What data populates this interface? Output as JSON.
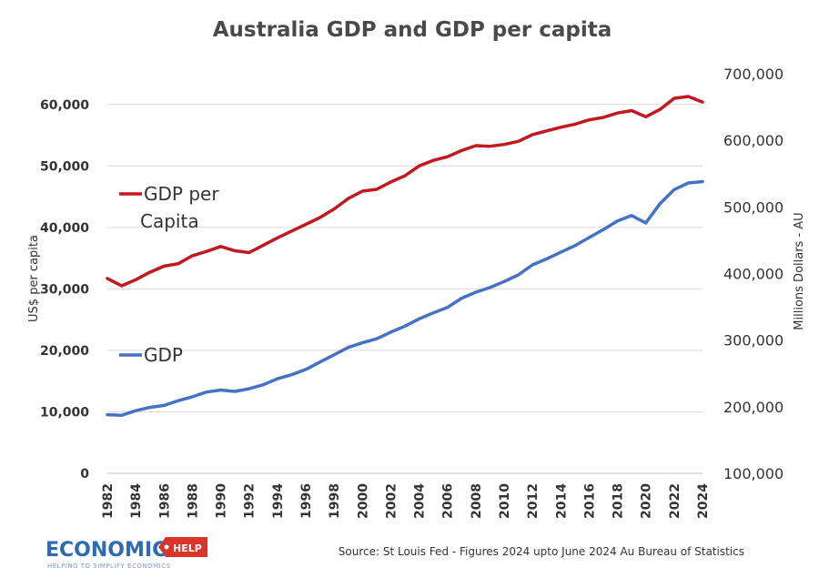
{
  "chart_data": {
    "type": "line",
    "title": "Australia GDP and GDP per capita",
    "ylabel_left": "US$ per capita",
    "ylabel_right": "Millions Dollars - AU",
    "ylim_left": [
      0,
      65000
    ],
    "ylim_right": [
      100000,
      700000
    ],
    "yticks_left": [
      "0",
      "10,000",
      "20,000",
      "30,000",
      "40,000",
      "50,000",
      "60,000"
    ],
    "yticks_right": [
      "100,000",
      "200,000",
      "300,000",
      "400,000",
      "500,000",
      "600,000",
      "700,000"
    ],
    "x": [
      1982,
      1983,
      1984,
      1985,
      1986,
      1987,
      1988,
      1989,
      1990,
      1991,
      1992,
      1993,
      1994,
      1995,
      1996,
      1997,
      1998,
      1999,
      2000,
      2001,
      2002,
      2003,
      2004,
      2005,
      2006,
      2007,
      2008,
      2009,
      2010,
      2011,
      2012,
      2013,
      2014,
      2015,
      2016,
      2017,
      2018,
      2019,
      2020,
      2021,
      2022,
      2023,
      2024
    ],
    "xticks": [
      "1982",
      "1984",
      "1986",
      "1988",
      "1990",
      "1992",
      "1994",
      "1996",
      "1998",
      "2000",
      "2002",
      "2004",
      "2006",
      "2008",
      "2010",
      "2012",
      "2014",
      "2016",
      "2018",
      "2020",
      "2022",
      "2024"
    ],
    "series": [
      {
        "name": "GDP per Capita",
        "axis": "left",
        "color": "#c0191f",
        "values": [
          31700,
          30500,
          31500,
          32700,
          33700,
          34100,
          35400,
          36100,
          36900,
          36200,
          35900,
          37100,
          38300,
          39400,
          40500,
          41600,
          43000,
          44700,
          45900,
          46200,
          47400,
          48400,
          50000,
          50900,
          51500,
          52500,
          53300,
          53200,
          53500,
          54000,
          55100,
          55700,
          56300,
          56800,
          57500,
          57900,
          58600,
          59000,
          58000,
          59200,
          61000,
          61300,
          60400
        ]
      },
      {
        "name": "GDP",
        "axis": "right",
        "color": "#4472c4",
        "values": [
          188000,
          187000,
          194000,
          199000,
          202000,
          209000,
          215000,
          222000,
          225000,
          223000,
          227000,
          233000,
          242000,
          248000,
          256000,
          267000,
          278000,
          289000,
          296000,
          302000,
          312000,
          321000,
          332000,
          341000,
          349000,
          363000,
          372000,
          379000,
          388000,
          398000,
          413000,
          422000,
          432000,
          442000,
          454000,
          466000,
          479000,
          487000,
          476000,
          505000,
          526000,
          536000,
          538000
        ]
      }
    ],
    "legend": [
      {
        "label_line1": "GDP per",
        "label_line2": "Capita",
        "color": "#c0191f"
      },
      {
        "label_line1": "GDP",
        "label_line2": "",
        "color": "#4472c4"
      }
    ]
  },
  "footer": {
    "source": "Source: St Louis Fed - Figures 2024 upto June 2024 Au Bureau of Statistics",
    "logo_main": "ECONOMICS",
    "logo_badge": "HELP",
    "logo_tagline": "HELPING TO SIMPLIFY ECONOMICS"
  },
  "colors": {
    "grid": "#d9d9d9",
    "axis": "#bfbfbf",
    "logo_blue": "#2e6ab3",
    "logo_red": "#d9362b"
  }
}
